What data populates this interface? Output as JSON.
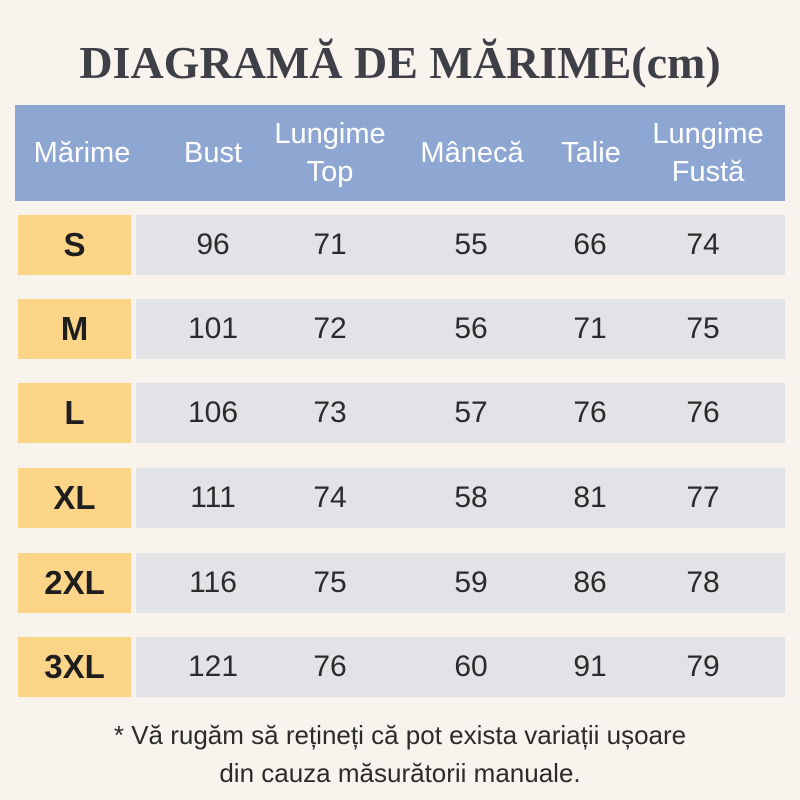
{
  "title": "DIAGRAMĂ DE MĂRIME(cm)",
  "table": {
    "headers": [
      "Mărime",
      "Bust",
      "Lungime\nTop",
      "Mânecă",
      "Talie",
      "Lungime\nFustă"
    ],
    "rows": [
      {
        "size": "S",
        "values": [
          "96",
          "71",
          "55",
          "66",
          "74"
        ]
      },
      {
        "size": "M",
        "values": [
          "101",
          "72",
          "56",
          "71",
          "75"
        ]
      },
      {
        "size": "L",
        "values": [
          "106",
          "73",
          "57",
          "76",
          "76"
        ]
      },
      {
        "size": "XL",
        "values": [
          "111",
          "74",
          "58",
          "81",
          "77"
        ]
      },
      {
        "size": "2XL",
        "values": [
          "116",
          "75",
          "59",
          "86",
          "78"
        ]
      },
      {
        "size": "3XL",
        "values": [
          "121",
          "76",
          "60",
          "91",
          "79"
        ]
      }
    ]
  },
  "note": {
    "line1": "* Vă rugăm să rețineți că pot exista variații ușoare",
    "line2": "din cauza măsurătorii manuale."
  },
  "colors": {
    "background": "#f8f3ec",
    "header": "#8ea6d2",
    "size_cell": "#fcd588",
    "data_row": "#e2e3e7",
    "title": "#3f3f47"
  }
}
